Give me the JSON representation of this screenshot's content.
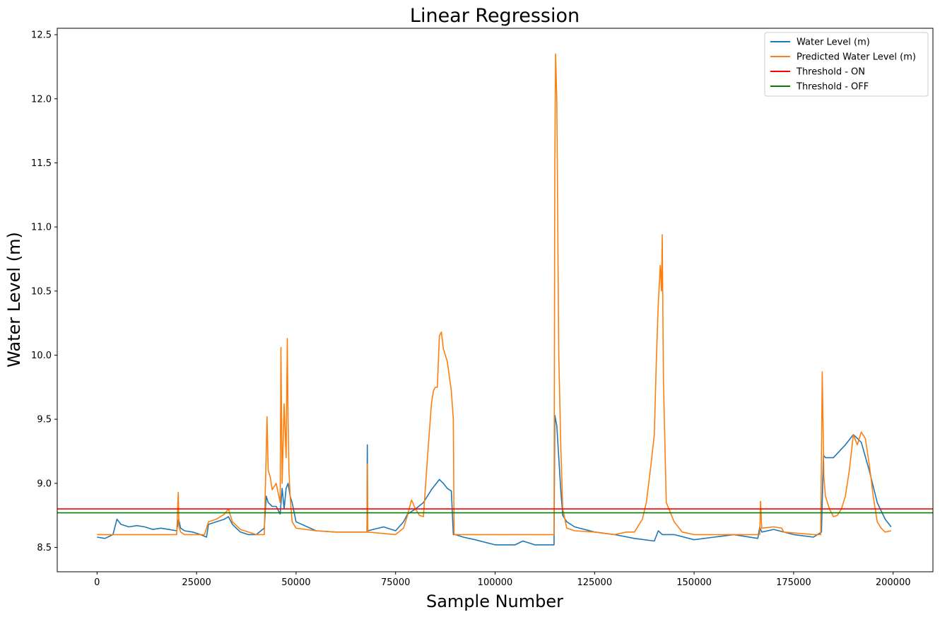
{
  "chart_data": {
    "type": "line",
    "title": "Linear Regression",
    "xlabel": "Sample Number",
    "ylabel": "Water Level (m)",
    "xlim": [
      -10000,
      210000
    ],
    "ylim": [
      8.31,
      12.55
    ],
    "xticks": [
      0,
      25000,
      50000,
      75000,
      100000,
      125000,
      150000,
      175000,
      200000
    ],
    "yticks": [
      8.5,
      9.0,
      9.5,
      10.0,
      10.5,
      11.0,
      11.5,
      12.0,
      12.5
    ],
    "xtick_labels": [
      "0",
      "25000",
      "50000",
      "75000",
      "100000",
      "125000",
      "150000",
      "175000",
      "200000"
    ],
    "ytick_labels": [
      "8.5",
      "9.0",
      "9.5",
      "10.0",
      "10.5",
      "11.0",
      "11.5",
      "12.0",
      "12.5"
    ],
    "grid": false,
    "legend_position": "top-right",
    "series": [
      {
        "name": "Water Level (m)",
        "color": "#1f77b4",
        "x": [
          0,
          2000,
          4000,
          5000,
          6000,
          8000,
          10000,
          12000,
          14000,
          16000,
          18000,
          20000,
          20500,
          21000,
          22000,
          24000,
          26000,
          27500,
          28000,
          30000,
          32000,
          33000,
          34000,
          36000,
          38000,
          40000,
          42000,
          42500,
          43000,
          44000,
          45000,
          46000,
          46500,
          47000,
          47500,
          48000,
          48500,
          49000,
          50000,
          55000,
          60000,
          65000,
          67800,
          67900,
          68000,
          72000,
          75000,
          77000,
          78000,
          80000,
          82000,
          84000,
          86000,
          87000,
          88000,
          89000,
          89500,
          90000,
          92000,
          95000,
          100000,
          105000,
          107000,
          110000,
          114800,
          115000,
          115500,
          116000,
          116500,
          117000,
          118000,
          120000,
          125000,
          130000,
          135000,
          140000,
          141000,
          142000,
          145000,
          150000,
          155000,
          160000,
          166000,
          166500,
          167000,
          170000,
          175000,
          180000,
          182000,
          182500,
          183000,
          185000,
          188000,
          190000,
          192000,
          194000,
          196000,
          198000,
          199500
        ],
        "y": [
          8.58,
          8.57,
          8.6,
          8.72,
          8.68,
          8.66,
          8.67,
          8.66,
          8.64,
          8.65,
          8.64,
          8.63,
          8.72,
          8.65,
          8.63,
          8.62,
          8.6,
          8.58,
          8.68,
          8.7,
          8.72,
          8.74,
          8.68,
          8.62,
          8.6,
          8.6,
          8.65,
          8.9,
          8.85,
          8.82,
          8.82,
          8.76,
          8.96,
          8.8,
          8.96,
          9.0,
          8.9,
          8.85,
          8.7,
          8.63,
          8.62,
          8.62,
          8.62,
          9.3,
          8.63,
          8.66,
          8.63,
          8.7,
          8.76,
          8.8,
          8.85,
          8.95,
          9.03,
          9.0,
          8.96,
          8.94,
          8.6,
          8.6,
          8.58,
          8.56,
          8.52,
          8.52,
          8.55,
          8.52,
          8.52,
          9.53,
          9.45,
          9.2,
          8.95,
          8.75,
          8.7,
          8.66,
          8.62,
          8.6,
          8.57,
          8.55,
          8.63,
          8.6,
          8.6,
          8.56,
          8.58,
          8.6,
          8.57,
          8.66,
          8.62,
          8.64,
          8.6,
          8.58,
          8.62,
          9.22,
          9.2,
          9.2,
          9.3,
          9.38,
          9.32,
          9.1,
          8.85,
          8.72,
          8.66
        ]
      },
      {
        "name": "Predicted Water Level (m)",
        "color": "#ff7f0e",
        "x": [
          0,
          20000,
          20400,
          20600,
          21000,
          22000,
          27000,
          28000,
          30000,
          32000,
          33000,
          34000,
          36000,
          40000,
          42000,
          42500,
          42700,
          43000,
          43500,
          44000,
          45000,
          46000,
          46200,
          46500,
          47000,
          47500,
          47800,
          48000,
          48200,
          48500,
          49000,
          50000,
          55000,
          60000,
          65000,
          67800,
          67900,
          68000,
          75000,
          77000,
          78000,
          79000,
          80000,
          81000,
          82000,
          83000,
          84000,
          84500,
          85000,
          85500,
          86000,
          86500,
          87000,
          88000,
          89000,
          89500,
          89700,
          90000,
          100000,
          114800,
          115000,
          115200,
          115500,
          116000,
          116500,
          117000,
          118000,
          120000,
          125000,
          130000,
          133000,
          135000,
          137000,
          138000,
          139000,
          140000,
          140500,
          141000,
          141500,
          141800,
          142000,
          142300,
          143000,
          145000,
          147000,
          150000,
          160000,
          166500,
          166700,
          167000,
          170000,
          172000,
          172500,
          180000,
          181800,
          182200,
          182600,
          183000,
          184000,
          185000,
          186000,
          187000,
          188000,
          189000,
          190000,
          191000,
          192000,
          193000,
          194000,
          195000,
          196000,
          197000,
          198000,
          199500
        ],
        "y": [
          8.6,
          8.6,
          8.93,
          8.66,
          8.62,
          8.6,
          8.6,
          8.7,
          8.72,
          8.76,
          8.8,
          8.7,
          8.64,
          8.6,
          8.6,
          9.25,
          9.52,
          9.1,
          9.05,
          8.95,
          9.0,
          8.85,
          10.06,
          9.0,
          9.62,
          9.2,
          10.13,
          9.5,
          9.1,
          8.9,
          8.7,
          8.65,
          8.63,
          8.62,
          8.62,
          8.62,
          9.15,
          8.62,
          8.6,
          8.65,
          8.75,
          8.87,
          8.8,
          8.75,
          8.74,
          9.2,
          9.62,
          9.72,
          9.75,
          9.75,
          10.15,
          10.18,
          10.05,
          9.95,
          9.72,
          9.5,
          8.6,
          8.6,
          8.6,
          8.6,
          11.5,
          12.35,
          12.0,
          10.0,
          9.3,
          8.8,
          8.65,
          8.63,
          8.62,
          8.6,
          8.62,
          8.62,
          8.72,
          8.85,
          9.1,
          9.38,
          9.95,
          10.4,
          10.7,
          10.5,
          10.94,
          9.8,
          8.85,
          8.7,
          8.62,
          8.6,
          8.6,
          8.6,
          8.86,
          8.65,
          8.66,
          8.65,
          8.62,
          8.6,
          8.6,
          9.87,
          9.05,
          8.9,
          8.8,
          8.74,
          8.75,
          8.8,
          8.9,
          9.1,
          9.38,
          9.3,
          9.4,
          9.35,
          9.15,
          8.9,
          8.7,
          8.65,
          8.62,
          8.63
        ]
      },
      {
        "name": "Threshold - ON",
        "color": "#ff0000",
        "x": [
          -10000,
          210000
        ],
        "y": [
          8.8,
          8.8
        ]
      },
      {
        "name": "Threshold - OFF",
        "color": "#008000",
        "x": [
          -10000,
          210000
        ],
        "y": [
          8.77,
          8.77
        ]
      }
    ]
  }
}
